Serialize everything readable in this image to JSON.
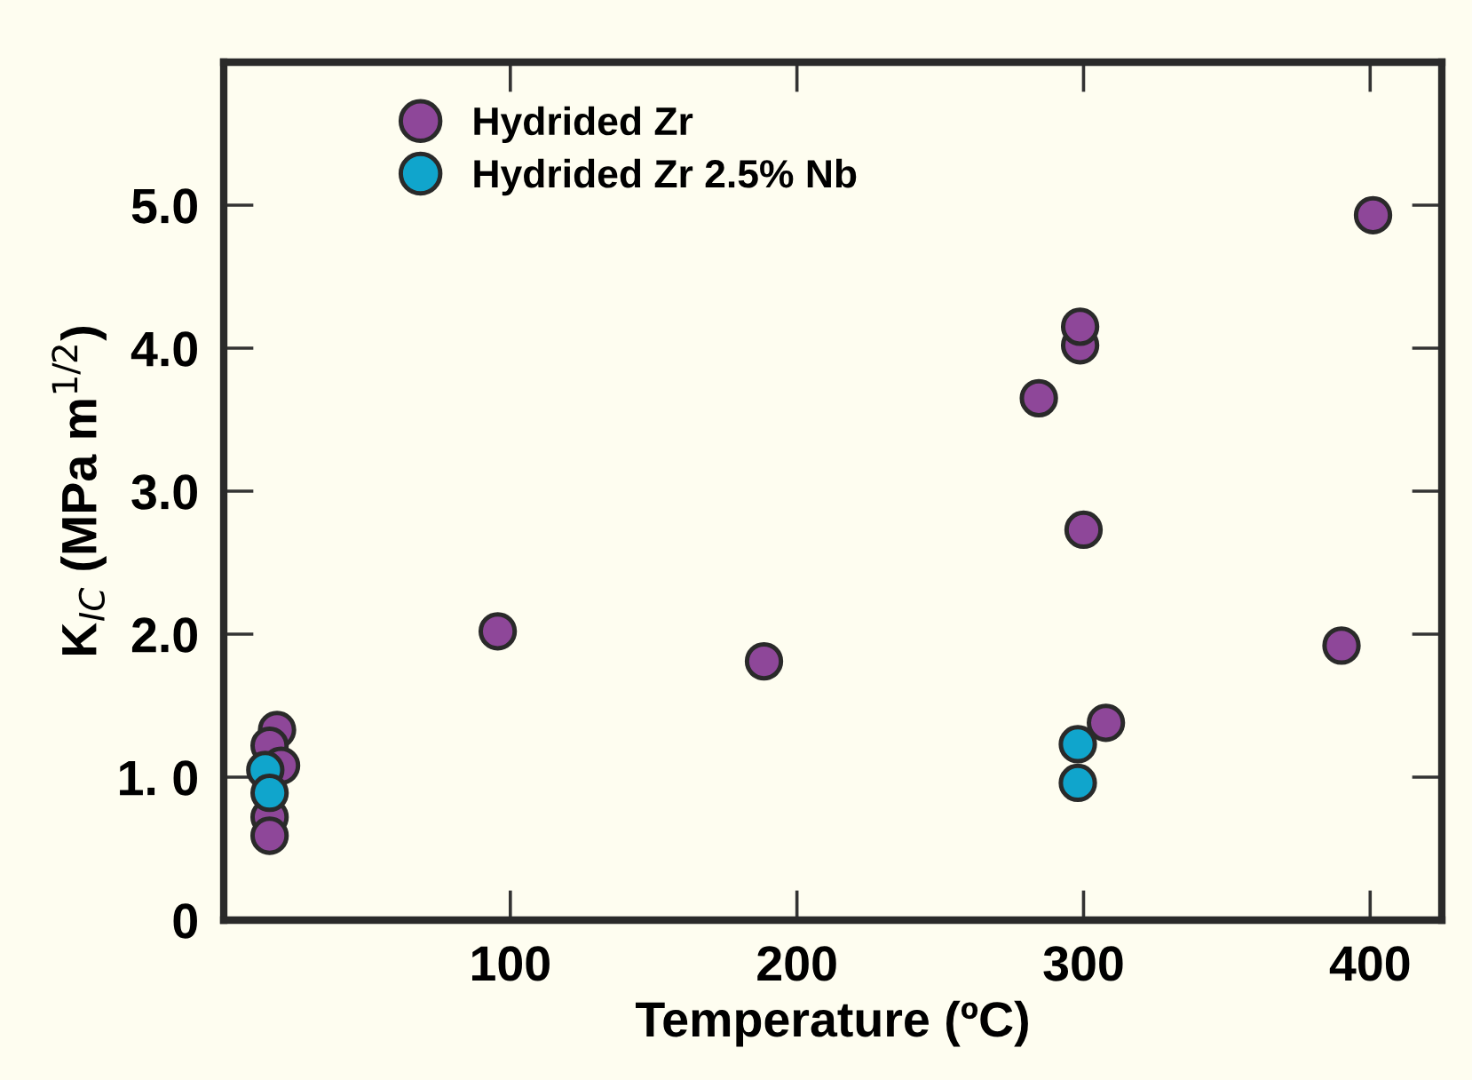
{
  "chart_data": {
    "type": "scatter",
    "xlabel": "Temperature (ºC)",
    "ylabel": "K$_{IC}$ (MPa m$^{1/2}$)",
    "series": [
      {
        "name": "Hydrided Zr",
        "color": "#8e4799",
        "x": [
          18.6,
          16,
          20,
          16,
          16,
          95.6,
          188.5,
          284.4,
          298.8,
          298.8,
          300,
          307.8,
          390,
          401
        ],
        "values": [
          1.33,
          1.22,
          1.08,
          0.72,
          0.59,
          2.02,
          1.81,
          3.65,
          4.02,
          4.15,
          2.73,
          1.38,
          1.92,
          4.93
        ]
      },
      {
        "name": "Hydrided Zr 2.5% Nb",
        "color": "#10a5cc",
        "x": [
          14.5,
          16,
          298,
          298
        ],
        "values": [
          1.05,
          0.89,
          1.23,
          0.96
        ]
      }
    ],
    "xlim": [
      0,
      425
    ],
    "ylim": [
      0,
      6
    ],
    "xticks": [
      100,
      200,
      300,
      400
    ],
    "yticks": [
      0,
      {
        "value": 1,
        "label": "1. 0"
      },
      {
        "value": 2,
        "label": "2.0"
      },
      {
        "value": 3,
        "label": "3.0"
      },
      {
        "value": 4,
        "label": "4.0"
      },
      {
        "value": 5,
        "label": "5.0"
      }
    ],
    "marker": "circle",
    "grid": false,
    "legend": "top left"
  }
}
